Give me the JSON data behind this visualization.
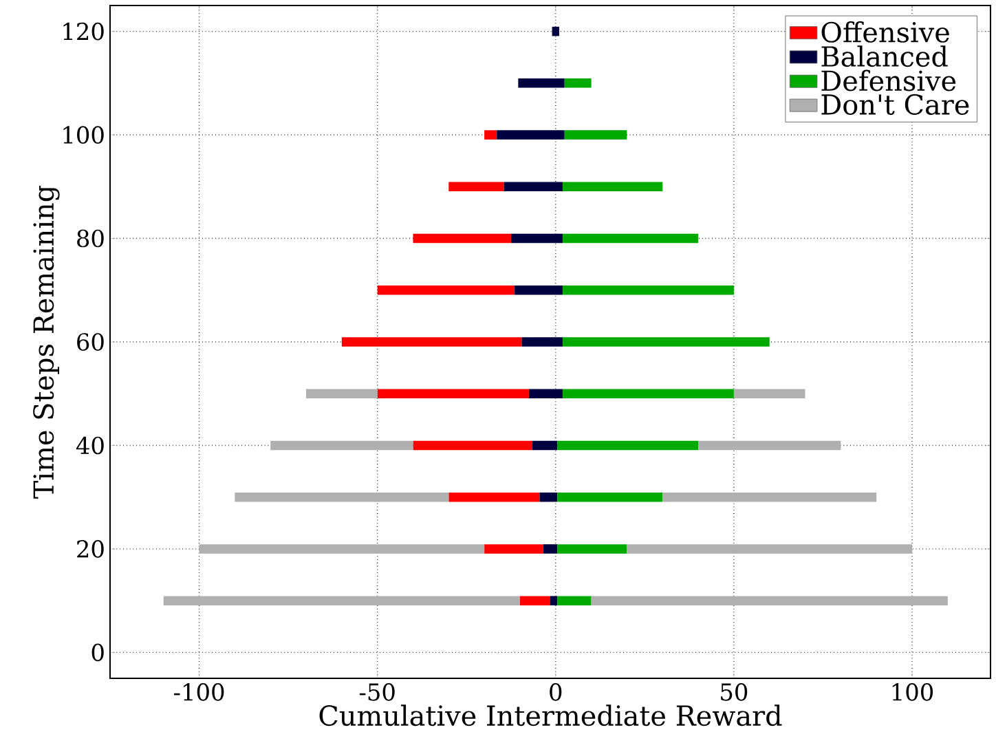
{
  "chart_data": {
    "type": "bar",
    "orientation": "horizontal",
    "xlabel": "Cumulative Intermediate Reward",
    "ylabel": "Time Steps Remaining",
    "x": [
      10,
      20,
      30,
      40,
      50,
      60,
      70,
      80,
      90,
      100,
      110,
      120
    ],
    "series": [
      {
        "name": "Offensive",
        "color": "#ff0000",
        "base": [
          -10,
          -20,
          -30,
          -40,
          -50,
          -60,
          -50,
          -40,
          -30,
          -20,
          null,
          null
        ],
        "values": [
          8.5,
          16.5,
          25.5,
          33.5,
          42.5,
          50.5,
          38.5,
          27.5,
          15.5,
          3.5,
          null,
          null
        ]
      },
      {
        "name": "Balanced",
        "color": "#000040",
        "base": [
          -1.5,
          -3.5,
          -4.5,
          -6.5,
          -7.5,
          -9.5,
          -11.5,
          -12.5,
          -14.5,
          -16.5,
          -10.5,
          -1
        ],
        "values": [
          2,
          4,
          5,
          7,
          9.5,
          11.5,
          13.5,
          14.5,
          16.5,
          19,
          13,
          2
        ]
      },
      {
        "name": "Defensive",
        "color": "#00aa00",
        "base": [
          0.5,
          0.5,
          0.5,
          0.5,
          2,
          2,
          2,
          2,
          2,
          2.5,
          2.5,
          null
        ],
        "values": [
          9.5,
          19.5,
          29.5,
          39.5,
          48,
          58,
          48,
          38,
          28,
          17.5,
          7.5,
          null
        ]
      },
      {
        "name": "Don't Care",
        "color": "#b0b0b0",
        "base": [
          -110,
          -100,
          -90,
          -80,
          -70,
          null,
          null,
          null,
          null,
          null,
          null,
          null
        ],
        "values": [
          100,
          80,
          60,
          40,
          20,
          null,
          null,
          null,
          null,
          null,
          null,
          null
        ]
      },
      {
        "color": "#b0b0b0",
        "base": [
          10,
          20,
          30,
          40,
          50,
          null,
          null,
          null,
          null,
          null,
          null,
          null
        ],
        "values": [
          100,
          80,
          60,
          40,
          20,
          null,
          null,
          null,
          null,
          null,
          null,
          null
        ]
      }
    ],
    "xlim": [
      -125,
      122
    ],
    "ylim": [
      -5,
      125
    ],
    "xticks": [
      -100,
      -50,
      0,
      50,
      100
    ],
    "yticks": [
      0,
      20,
      40,
      60,
      80,
      100,
      120
    ],
    "grid": true,
    "legend": "top right"
  }
}
